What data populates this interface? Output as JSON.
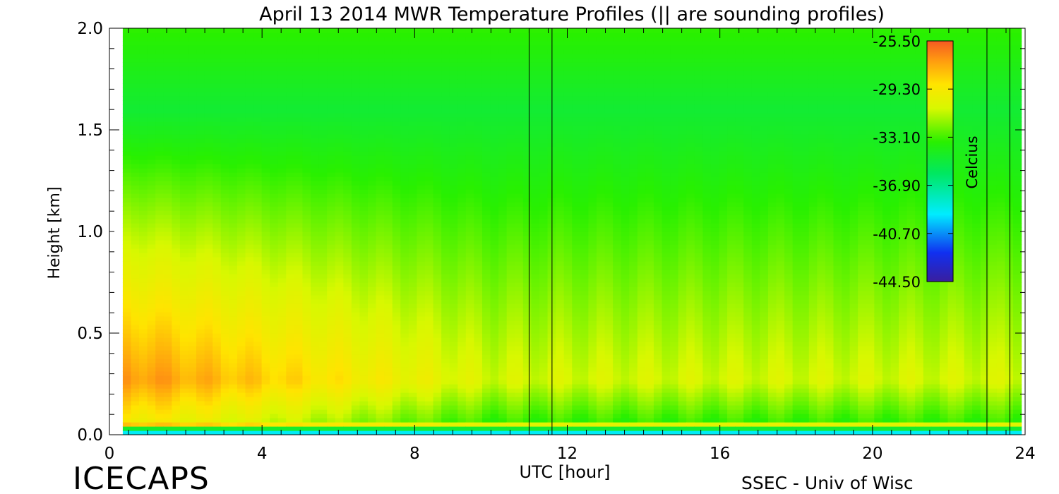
{
  "chart_data": {
    "type": "heatmap",
    "title": "April 13 2014 MWR Temperature Profiles (|| are sounding profiles)",
    "xlabel": "UTC [hour]",
    "ylabel": "Height [km]",
    "xlim": [
      0,
      24
    ],
    "ylim": [
      0,
      2
    ],
    "x_ticks": [
      0,
      4,
      8,
      12,
      16,
      20,
      24
    ],
    "x_tick_labels": [
      "0",
      "4",
      "8",
      "12",
      "16",
      "20",
      "24"
    ],
    "y_ticks": [
      0.0,
      0.5,
      1.0,
      1.5,
      2.0
    ],
    "y_tick_labels": [
      "0.0",
      "0.5",
      "1.0",
      "1.5",
      "2.0"
    ],
    "data_x_range": [
      0.35,
      23.9
    ],
    "sounding_times": [
      11.0,
      11.6,
      23.0,
      23.6
    ],
    "colorbar": {
      "label": "Celcius",
      "min": -44.5,
      "max": -25.5,
      "ticks": [
        -25.5,
        -29.3,
        -33.1,
        -36.9,
        -40.7,
        -44.5
      ],
      "tick_labels": [
        "-25.50",
        "-29.30",
        "-33.10",
        "-36.90",
        "-40.70",
        "-44.50"
      ]
    },
    "grid": false,
    "legend": "colorbar top-right inside plot"
  },
  "footer": {
    "left_text": "ICECAPS",
    "right_text": "SSEC - Univ of Wisc"
  }
}
